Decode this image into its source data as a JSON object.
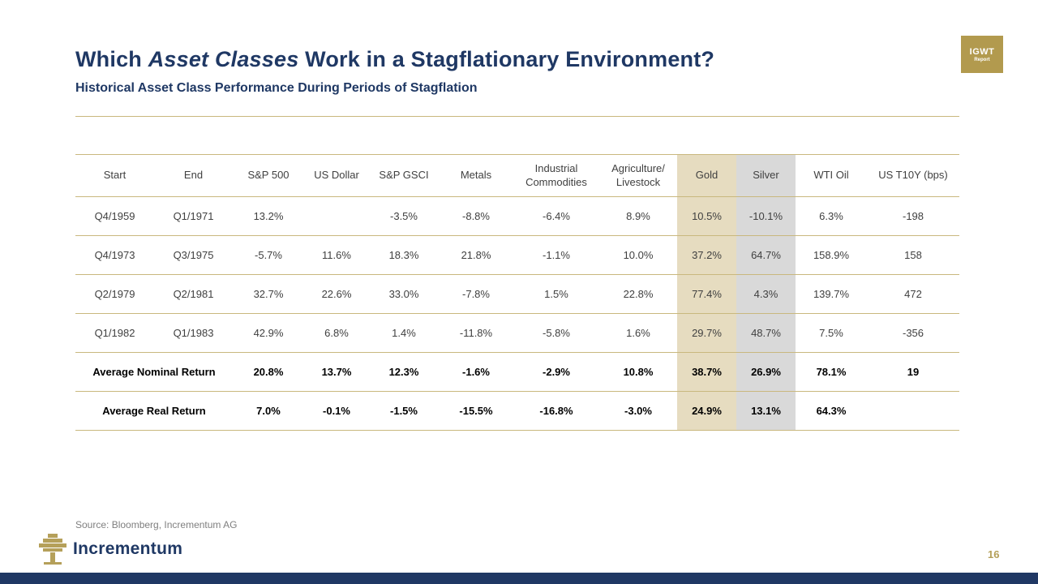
{
  "header": {
    "title_prefix": "Which ",
    "title_italic": "Asset Classes",
    "title_suffix": " Work in a Stagflationary Environment?",
    "subtitle": "Historical Asset Class Performance During Periods of Stagflation",
    "badge_line1": "IGWT",
    "badge_line2": "Report"
  },
  "chart_data": {
    "type": "table",
    "title": "Historical Asset Class Performance During Periods of Stagflation",
    "columns": [
      "Start",
      "End",
      "S&P 500",
      "US Dollar",
      "S&P GSCI",
      "Metals",
      "Industrial Commodities",
      "Agriculture/ Livestock",
      "Gold",
      "Silver",
      "WTI Oil",
      "US T10Y (bps)"
    ],
    "column_highlights": {
      "Gold": "#e6dcc0",
      "Silver": "#d9d9d9"
    },
    "rows": [
      {
        "bold": false,
        "cells": [
          "Q4/1959",
          "Q1/1971",
          "13.2%",
          "",
          "-3.5%",
          "-8.8%",
          "-6.4%",
          "8.9%",
          "10.5%",
          "-10.1%",
          "6.3%",
          "-198"
        ]
      },
      {
        "bold": false,
        "cells": [
          "Q4/1973",
          "Q3/1975",
          "-5.7%",
          "11.6%",
          "18.3%",
          "21.8%",
          "-1.1%",
          "10.0%",
          "37.2%",
          "64.7%",
          "158.9%",
          "158"
        ]
      },
      {
        "bold": false,
        "cells": [
          "Q2/1979",
          "Q2/1981",
          "32.7%",
          "22.6%",
          "33.0%",
          "-7.8%",
          "1.5%",
          "22.8%",
          "77.4%",
          "4.3%",
          "139.7%",
          "472"
        ]
      },
      {
        "bold": false,
        "cells": [
          "Q1/1982",
          "Q1/1983",
          "42.9%",
          "6.8%",
          "1.4%",
          "-11.8%",
          "-5.8%",
          "1.6%",
          "29.7%",
          "48.7%",
          "7.5%",
          "-356"
        ]
      },
      {
        "bold": true,
        "label_span2": "Average Nominal Return",
        "cells": [
          "20.8%",
          "13.7%",
          "12.3%",
          "-1.6%",
          "-2.9%",
          "10.8%",
          "38.7%",
          "26.9%",
          "78.1%",
          "19"
        ]
      },
      {
        "bold": true,
        "label_span2": "Average Real Return",
        "cells": [
          "7.0%",
          "-0.1%",
          "-1.5%",
          "-15.5%",
          "-16.8%",
          "-3.0%",
          "24.9%",
          "13.1%",
          "64.3%",
          ""
        ]
      }
    ]
  },
  "footer": {
    "source": "Source: Bloomberg, Incrementum AG",
    "logo_text": "Incrementum",
    "page_number": "16"
  },
  "colors": {
    "navy": "#1f3864",
    "accent_gold": "#b29a4e",
    "line_gold": "#c9b87e",
    "gold_column_bg": "#e6dcc0",
    "silver_column_bg": "#d9d9d9"
  }
}
